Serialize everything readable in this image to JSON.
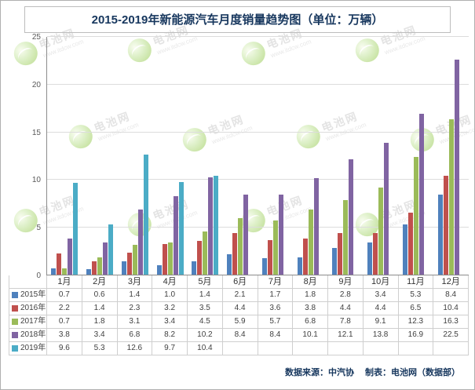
{
  "chart_data": {
    "type": "bar",
    "title": "2015-2019年新能源汽车月度销量趋势图（单位：万辆）",
    "categories": [
      "1月",
      "2月",
      "3月",
      "4月",
      "5月",
      "6月",
      "7月",
      "8月",
      "9月",
      "10月",
      "11月",
      "12月"
    ],
    "series": [
      {
        "name": "2015年",
        "color": "#4F81BD",
        "values": [
          0.7,
          0.6,
          1.4,
          1.0,
          1.4,
          2.1,
          1.7,
          1.8,
          2.8,
          3.4,
          5.3,
          8.4
        ]
      },
      {
        "name": "2016年",
        "color": "#C0504D",
        "values": [
          2.2,
          1.4,
          2.3,
          3.2,
          3.5,
          4.4,
          3.6,
          3.8,
          4.4,
          4.4,
          6.5,
          10.4
        ]
      },
      {
        "name": "2017年",
        "color": "#9BBB59",
        "values": [
          0.7,
          1.8,
          3.1,
          3.4,
          4.5,
          5.9,
          5.7,
          6.8,
          7.8,
          9.1,
          12.3,
          16.3
        ]
      },
      {
        "name": "2018年",
        "color": "#8064A2",
        "values": [
          3.8,
          3.4,
          6.8,
          8.2,
          10.2,
          8.4,
          8.4,
          10.1,
          12.1,
          13.8,
          16.9,
          22.5
        ]
      },
      {
        "name": "2019年",
        "color": "#4BACC6",
        "values": [
          9.6,
          5.3,
          12.6,
          9.7,
          10.4,
          null,
          null,
          null,
          null,
          null,
          null,
          null
        ]
      }
    ],
    "ylim": [
      0,
      25
    ],
    "yticks": [
      0,
      5,
      10,
      15,
      20,
      25
    ],
    "grid": true,
    "legend_position": "table-left",
    "value_decimals": 1
  },
  "footer": {
    "source": "数据来源：中汽协",
    "maker": "制表：电池网（数据部）"
  },
  "watermark": {
    "name": "电池网",
    "url": "www.itdcw.com"
  }
}
